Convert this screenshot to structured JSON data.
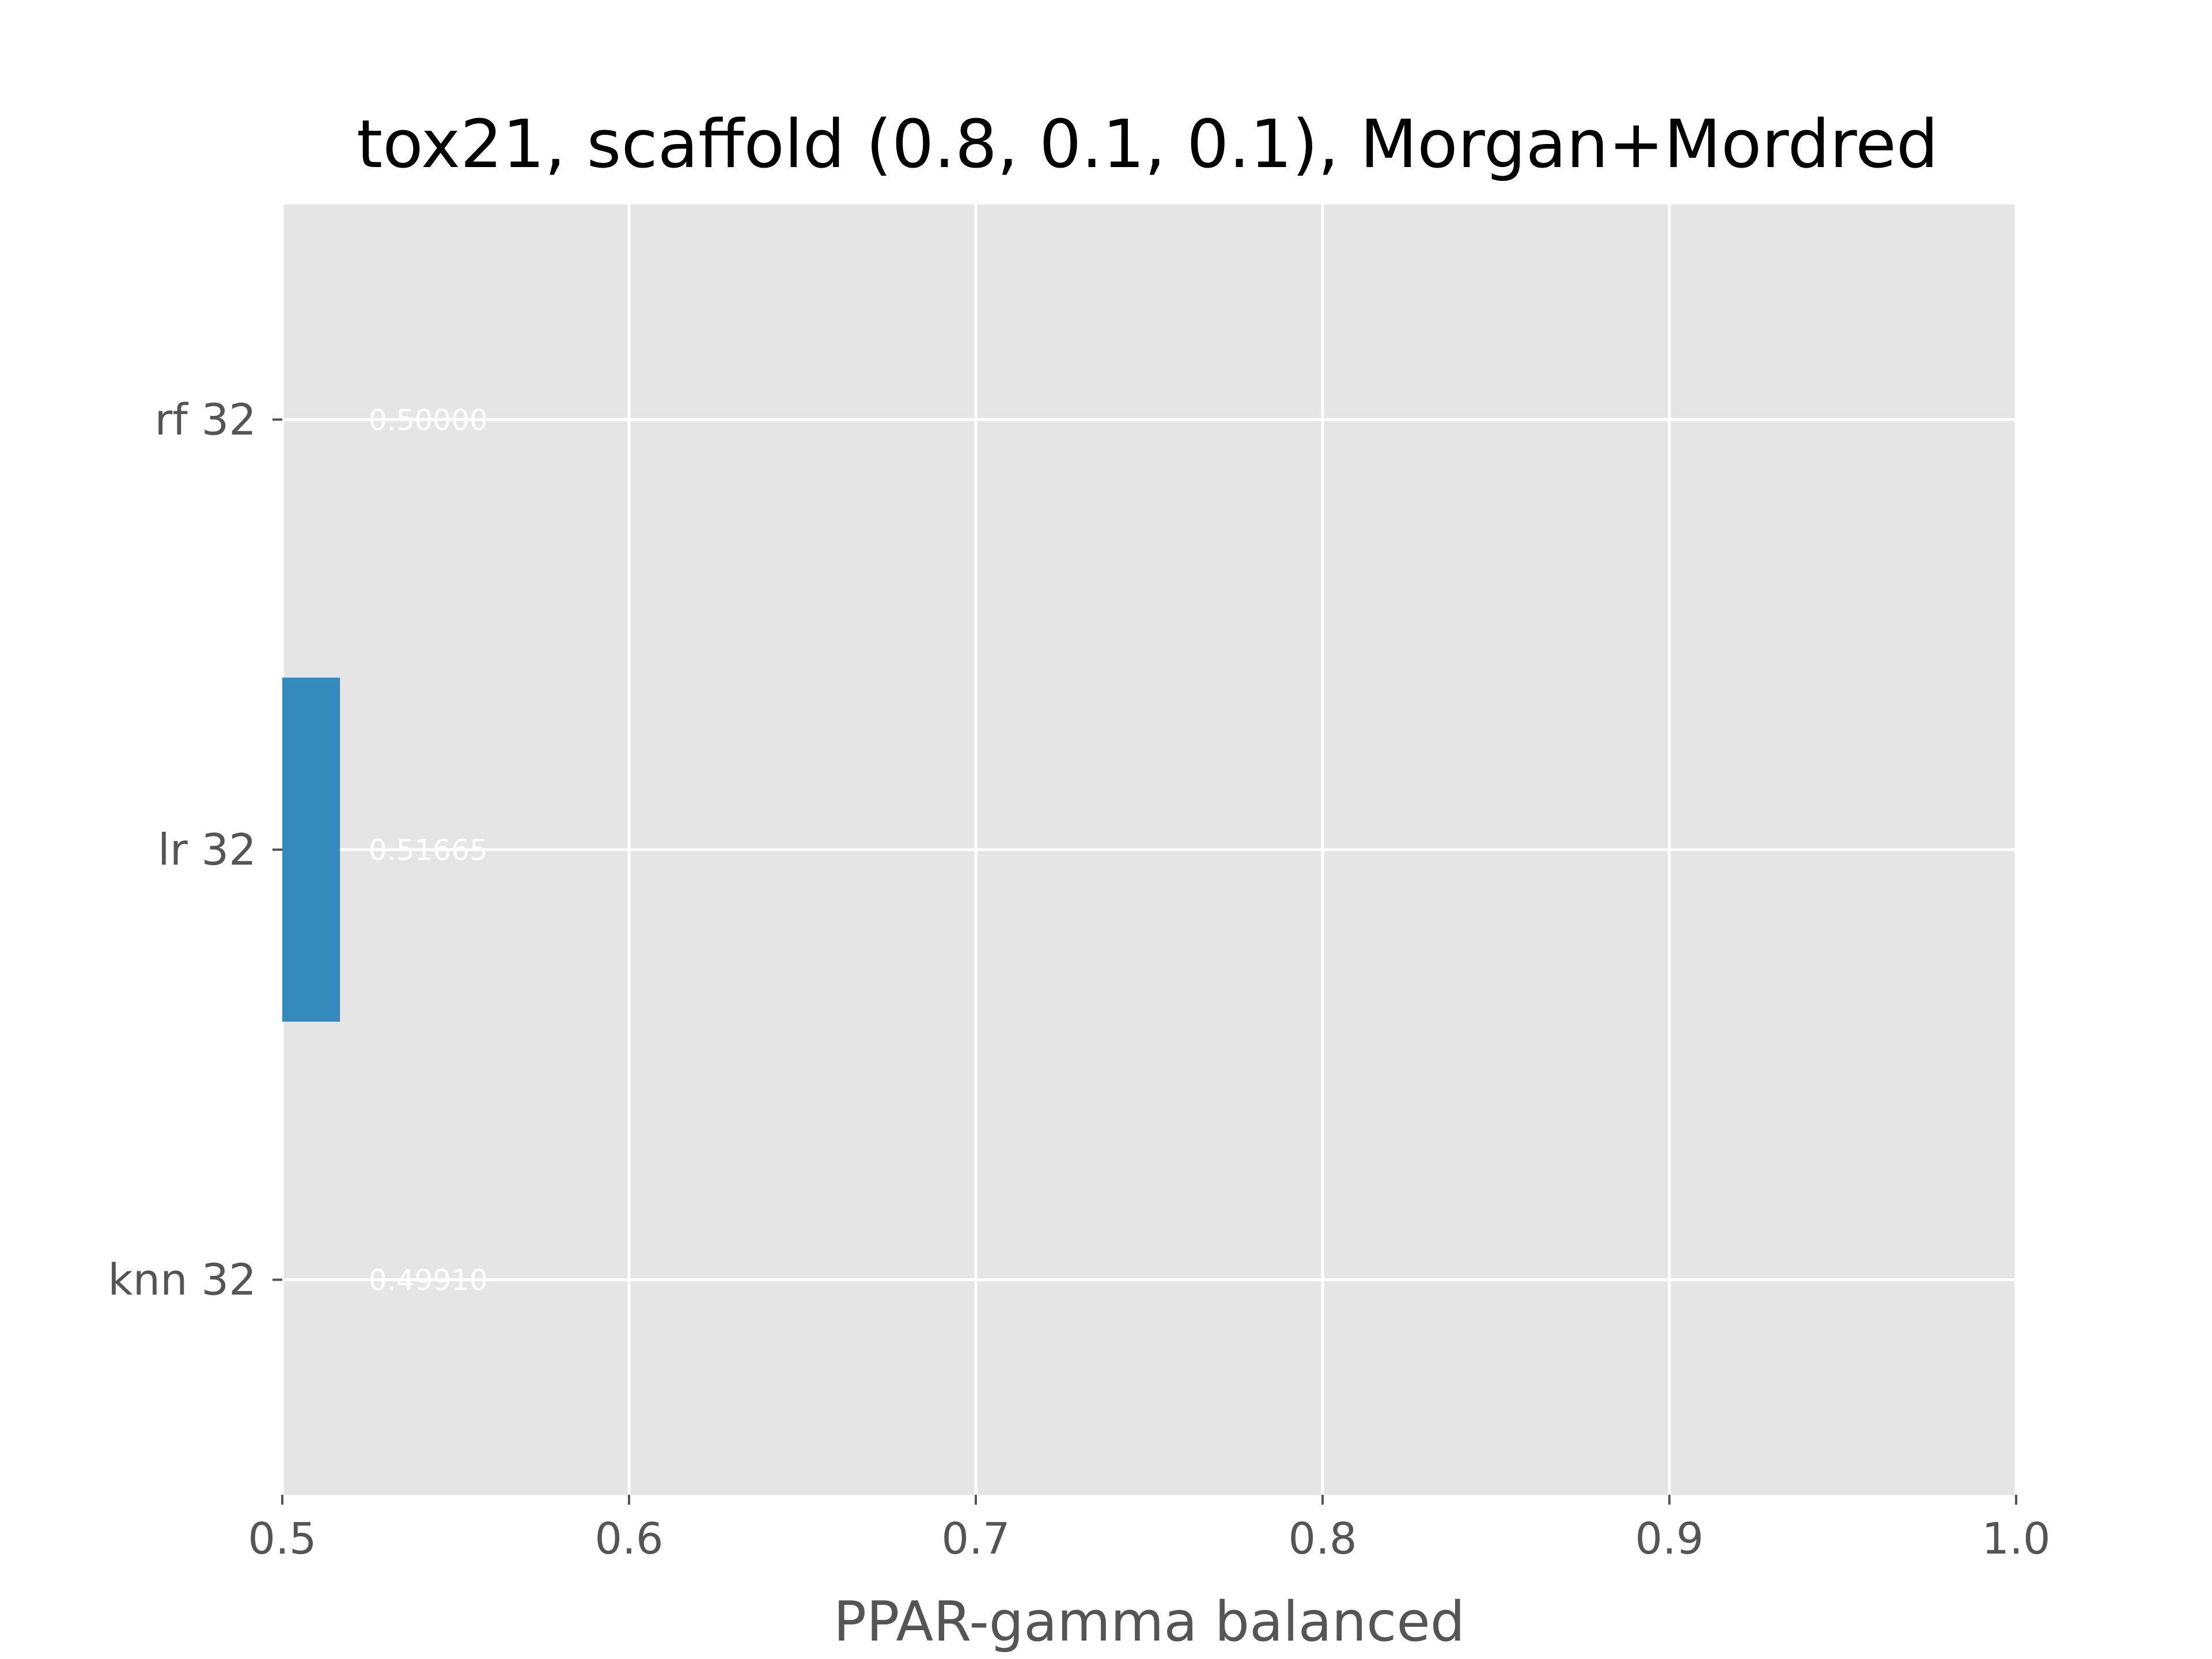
{
  "chart_data": {
    "type": "bar",
    "orientation": "horizontal",
    "title": "tox21, scaffold (0.8, 0.1, 0.1), Morgan+Mordred",
    "xlabel": "PPAR-gamma balanced",
    "ylabel": "",
    "xlim": [
      0.5,
      1.0
    ],
    "xticks": [
      "0.5",
      "0.6",
      "0.7",
      "0.8",
      "0.9",
      "1.0"
    ],
    "categories": [
      "rf 32",
      "lr 32",
      "knn 32"
    ],
    "values": [
      0.5,
      0.51665,
      0.4991
    ],
    "value_labels": [
      "0.50000",
      "0.51665",
      "0.49910"
    ],
    "grid": true,
    "legend": "none",
    "colors": {
      "background": "#e5e5e5",
      "bar": "#348abd",
      "grid": "#ffffff",
      "value_label": "#ffffff"
    }
  }
}
